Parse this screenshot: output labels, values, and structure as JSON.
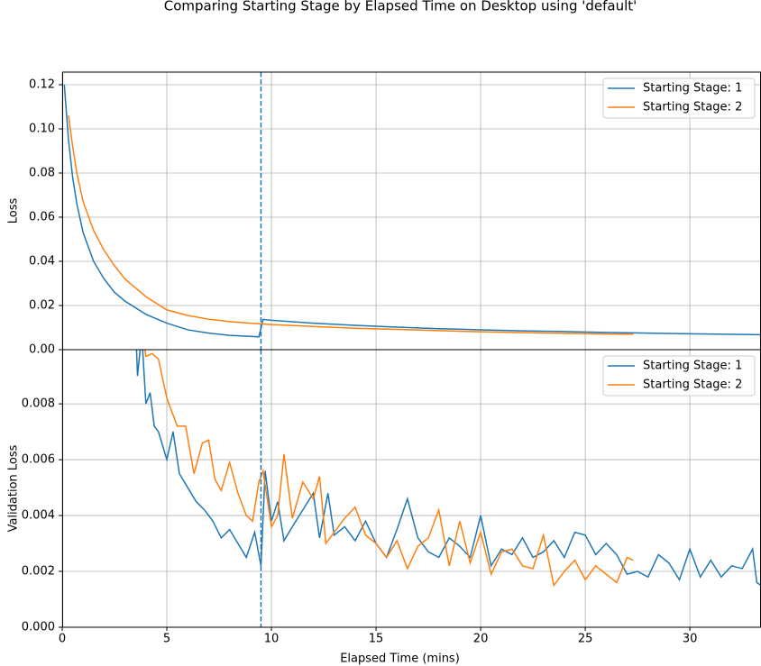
{
  "title": "Comparing Starting Stage by Elapsed Time on Desktop using 'default'",
  "chart_data": [
    {
      "type": "line",
      "ylabel": "Loss",
      "xlim": [
        0,
        33.4
      ],
      "ylim": [
        0,
        0.1257
      ],
      "xticks": [
        0,
        5,
        10,
        15,
        20,
        25,
        30
      ],
      "yticks": [
        {
          "value": 0,
          "label": "0.00"
        },
        {
          "value": 0.02,
          "label": "0.02"
        },
        {
          "value": 0.04,
          "label": "0.04"
        },
        {
          "value": 0.06,
          "label": "0.06"
        },
        {
          "value": 0.08,
          "label": "0.08"
        },
        {
          "value": 0.1,
          "label": "0.10"
        },
        {
          "value": 0.12,
          "label": "0.12"
        }
      ],
      "grid": true,
      "legend": "upper right",
      "vlines": [
        9.5
      ],
      "vline_color": "#1f77b4",
      "series": [
        {
          "name": "Starting Stage: 1",
          "color": "#1f77b4",
          "x": [
            0.1,
            0.3,
            0.5,
            0.7,
            1,
            1.5,
            2,
            2.5,
            3,
            4,
            5,
            6,
            7,
            8,
            9,
            9.4,
            9.6,
            10,
            12,
            14,
            16,
            18,
            20,
            22,
            24,
            26,
            28,
            30,
            33.4
          ],
          "values": [
            0.12,
            0.095,
            0.078,
            0.066,
            0.053,
            0.04,
            0.032,
            0.026,
            0.022,
            0.016,
            0.012,
            0.009,
            0.0075,
            0.0065,
            0.006,
            0.0058,
            0.0137,
            0.0133,
            0.012,
            0.011,
            0.0102,
            0.0095,
            0.009,
            0.0085,
            0.0082,
            0.0078,
            0.0075,
            0.0072,
            0.0068
          ]
        },
        {
          "name": "Starting Stage: 2",
          "color": "#ff7f0e",
          "x": [
            0.3,
            0.5,
            0.7,
            1,
            1.5,
            2,
            2.5,
            3,
            4,
            5,
            6,
            7,
            8,
            9,
            9.5,
            10,
            12,
            14,
            16,
            18,
            20,
            22,
            24,
            26,
            27.3
          ],
          "values": [
            0.106,
            0.092,
            0.08,
            0.067,
            0.054,
            0.045,
            0.038,
            0.032,
            0.024,
            0.018,
            0.0155,
            0.0138,
            0.0127,
            0.012,
            0.0117,
            0.0114,
            0.0105,
            0.0097,
            0.0092,
            0.0086,
            0.0081,
            0.0077,
            0.0074,
            0.0071,
            0.007
          ]
        }
      ]
    },
    {
      "type": "line",
      "ylabel": "Validation Loss",
      "xlabel": "Elapsed Time (mins)",
      "xlim": [
        0,
        33.4
      ],
      "ylim": [
        0,
        0.00994
      ],
      "xticks": [
        0,
        5,
        10,
        15,
        20,
        25,
        30
      ],
      "yticks": [
        {
          "value": 0,
          "label": "0.000"
        },
        {
          "value": 0.002,
          "label": "0.002"
        },
        {
          "value": 0.004,
          "label": "0.004"
        },
        {
          "value": 0.006,
          "label": "0.006"
        },
        {
          "value": 0.008,
          "label": "0.008"
        }
      ],
      "grid": true,
      "legend": "upper right",
      "vlines": [
        9.5
      ],
      "vline_color": "#1f77b4",
      "series": [
        {
          "name": "Starting Stage: 1",
          "color": "#1f77b4",
          "x": [
            3.5,
            3.6,
            3.8,
            4,
            4.2,
            4.4,
            4.6,
            5,
            5.3,
            5.6,
            6,
            6.4,
            6.8,
            7.2,
            7.6,
            8,
            8.4,
            8.8,
            9.2,
            9.5,
            9.7,
            10,
            10.3,
            10.6,
            11,
            11.5,
            12,
            12.3,
            12.7,
            13,
            13.5,
            14,
            14.5,
            15,
            15.5,
            16,
            16.5,
            17,
            17.5,
            18,
            18.5,
            19,
            19.5,
            20,
            20.5,
            21,
            21.5,
            22,
            22.5,
            23,
            23.5,
            24,
            24.5,
            25,
            25.5,
            26,
            26.5,
            27,
            27.5,
            28,
            28.5,
            29,
            29.5,
            30,
            30.5,
            31,
            31.5,
            32,
            32.5,
            33,
            33.2,
            33.4
          ],
          "values": [
            0.011,
            0.009,
            0.0105,
            0.008,
            0.0084,
            0.0072,
            0.007,
            0.006,
            0.007,
            0.0055,
            0.005,
            0.0045,
            0.0042,
            0.0038,
            0.0032,
            0.0035,
            0.003,
            0.0025,
            0.0034,
            0.0022,
            0.0056,
            0.0038,
            0.0045,
            0.0031,
            0.0036,
            0.0042,
            0.0048,
            0.0032,
            0.0048,
            0.0033,
            0.0036,
            0.0031,
            0.0038,
            0.003,
            0.0025,
            0.0035,
            0.0046,
            0.0032,
            0.0027,
            0.0025,
            0.0032,
            0.0029,
            0.0025,
            0.004,
            0.0022,
            0.0028,
            0.0026,
            0.0032,
            0.0025,
            0.0027,
            0.0031,
            0.0025,
            0.0034,
            0.0033,
            0.0026,
            0.003,
            0.0026,
            0.0019,
            0.002,
            0.0018,
            0.0026,
            0.0023,
            0.0017,
            0.0028,
            0.0018,
            0.0024,
            0.0018,
            0.0022,
            0.0021,
            0.0028,
            0.0016,
            0.0015
          ]
        },
        {
          "name": "Starting Stage: 2",
          "color": "#ff7f0e",
          "x": [
            3.9,
            4,
            4.3,
            4.6,
            5,
            5.5,
            5.9,
            6.3,
            6.7,
            7,
            7.3,
            7.6,
            8,
            8.4,
            8.8,
            9.1,
            9.4,
            9.6,
            10,
            10.3,
            10.6,
            11,
            11.5,
            12,
            12.3,
            12.6,
            13,
            13.5,
            14,
            14.5,
            15,
            15.5,
            16,
            16.5,
            17,
            17.5,
            18,
            18.5,
            19,
            19.5,
            20,
            20.5,
            21,
            21.5,
            22,
            22.5,
            23,
            23.5,
            24,
            24.5,
            25,
            25.5,
            26,
            26.5,
            27,
            27.3
          ],
          "values": [
            0.0102,
            0.0097,
            0.0098,
            0.0096,
            0.0082,
            0.0072,
            0.0072,
            0.0055,
            0.0066,
            0.0067,
            0.0053,
            0.0049,
            0.0059,
            0.0048,
            0.004,
            0.0038,
            0.0052,
            0.0056,
            0.0036,
            0.004,
            0.0062,
            0.0039,
            0.0052,
            0.0046,
            0.0054,
            0.003,
            0.0034,
            0.0039,
            0.0043,
            0.0033,
            0.003,
            0.0025,
            0.0031,
            0.0021,
            0.0029,
            0.0032,
            0.0042,
            0.0022,
            0.0038,
            0.0023,
            0.0034,
            0.0019,
            0.0027,
            0.0028,
            0.0022,
            0.0021,
            0.0033,
            0.0015,
            0.002,
            0.0024,
            0.0017,
            0.0022,
            0.0019,
            0.0016,
            0.0025,
            0.0024
          ]
        }
      ]
    }
  ]
}
